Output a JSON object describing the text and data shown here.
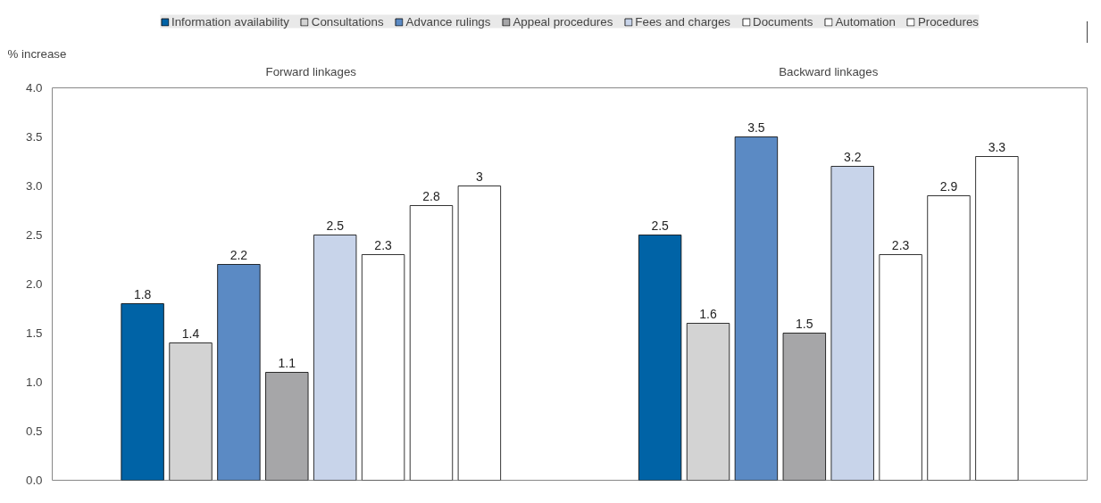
{
  "chart_data": {
    "type": "bar",
    "ylabel": "% increase",
    "categories": [
      "Forward linkages",
      "Backward linkages"
    ],
    "series": [
      {
        "name": "Information availability",
        "color": "#0063a6",
        "values": [
          1.8,
          2.5
        ]
      },
      {
        "name": "Consultations",
        "color": "#d3d3d3",
        "values": [
          1.4,
          1.6
        ]
      },
      {
        "name": "Advance rulings",
        "color": "#5b8ac4",
        "values": [
          2.2,
          3.5
        ]
      },
      {
        "name": "Appeal procedures",
        "color": "#a6a6a8",
        "values": [
          1.1,
          1.5
        ]
      },
      {
        "name": "Fees and charges",
        "color": "#c8d4ea",
        "values": [
          2.5,
          3.2
        ]
      },
      {
        "name": "Documents",
        "color": "#ffffff",
        "values": [
          2.3,
          2.3
        ]
      },
      {
        "name": "Automation",
        "color": "#ffffff",
        "values": [
          2.8,
          2.9
        ]
      },
      {
        "name": "Procedures",
        "color": "#ffffff",
        "values": [
          3,
          3.3
        ]
      }
    ],
    "ylim": [
      0,
      4
    ],
    "yticks": [
      {
        "value": 0,
        "label": "0.0"
      },
      {
        "value": 0.5,
        "label": "0.5"
      },
      {
        "value": 1,
        "label": "1.0"
      },
      {
        "value": 1.5,
        "label": "1.5"
      },
      {
        "value": 2,
        "label": "2.0"
      },
      {
        "value": 2.5,
        "label": "2.5"
      },
      {
        "value": 3,
        "label": "3.0"
      },
      {
        "value": 3.5,
        "label": "3.5"
      },
      {
        "value": 4,
        "label": "4.0"
      }
    ],
    "grid": false,
    "legend": "top",
    "data_labels": true
  }
}
